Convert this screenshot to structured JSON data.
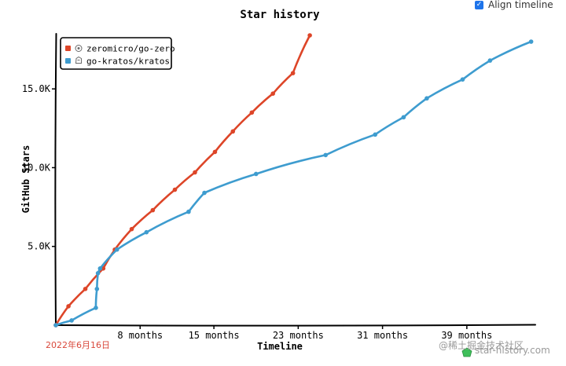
{
  "align_timeline": {
    "label": "Align timeline",
    "checked": true
  },
  "date_label": "2022年6月16日",
  "watermark": {
    "site": "star-history.com",
    "juejin": "@稀土掘金技术社区"
  },
  "colors": {
    "go_zero": "#dd4528",
    "kratos": "#3e9ccf",
    "date_label": "#d9483b"
  },
  "chart_data": {
    "type": "line",
    "title": "Star history",
    "xlabel": "Timeline",
    "ylabel": "GitHub Stars",
    "xlim": [
      0,
      45.5
    ],
    "ylim": [
      0,
      18500
    ],
    "x_ticks": [
      {
        "value": 8,
        "label": "8 months"
      },
      {
        "value": 15,
        "label": "15 months"
      },
      {
        "value": 23,
        "label": "23 months"
      },
      {
        "value": 31,
        "label": "31 months"
      },
      {
        "value": 39,
        "label": "39 months"
      }
    ],
    "y_ticks": [
      {
        "value": 5000,
        "label": "5.0K"
      },
      {
        "value": 10000,
        "label": "10.0K"
      },
      {
        "value": 15000,
        "label": "15.0K"
      }
    ],
    "legend_position": "top-left",
    "series": [
      {
        "name": "zeromicro/go-zero",
        "color": "#dd4528",
        "icon": "zero-logo-icon",
        "x": [
          0,
          1.2,
          2.8,
          4.5,
          5.6,
          7.2,
          9.2,
          11.3,
          13.2,
          15.1,
          16.8,
          18.6,
          20.6,
          22.5,
          24.1
        ],
        "y": [
          0,
          1200,
          2300,
          3600,
          4800,
          6100,
          7300,
          8600,
          9700,
          11000,
          12300,
          13500,
          14700,
          16000,
          18400
        ]
      },
      {
        "name": "go-kratos/kratos",
        "color": "#3e9ccf",
        "icon": "kratos-logo-icon",
        "x": [
          0,
          1.5,
          3.8,
          3.9,
          4.0,
          4.2,
          5.8,
          8.6,
          12.6,
          14.1,
          19.0,
          25.6,
          30.3,
          33.0,
          35.2,
          38.6,
          41.2,
          45.1
        ],
        "y": [
          0,
          300,
          1100,
          2300,
          3300,
          3600,
          4800,
          5900,
          7200,
          8400,
          9600,
          10800,
          12100,
          13200,
          14400,
          15600,
          16800,
          18000
        ]
      }
    ]
  }
}
